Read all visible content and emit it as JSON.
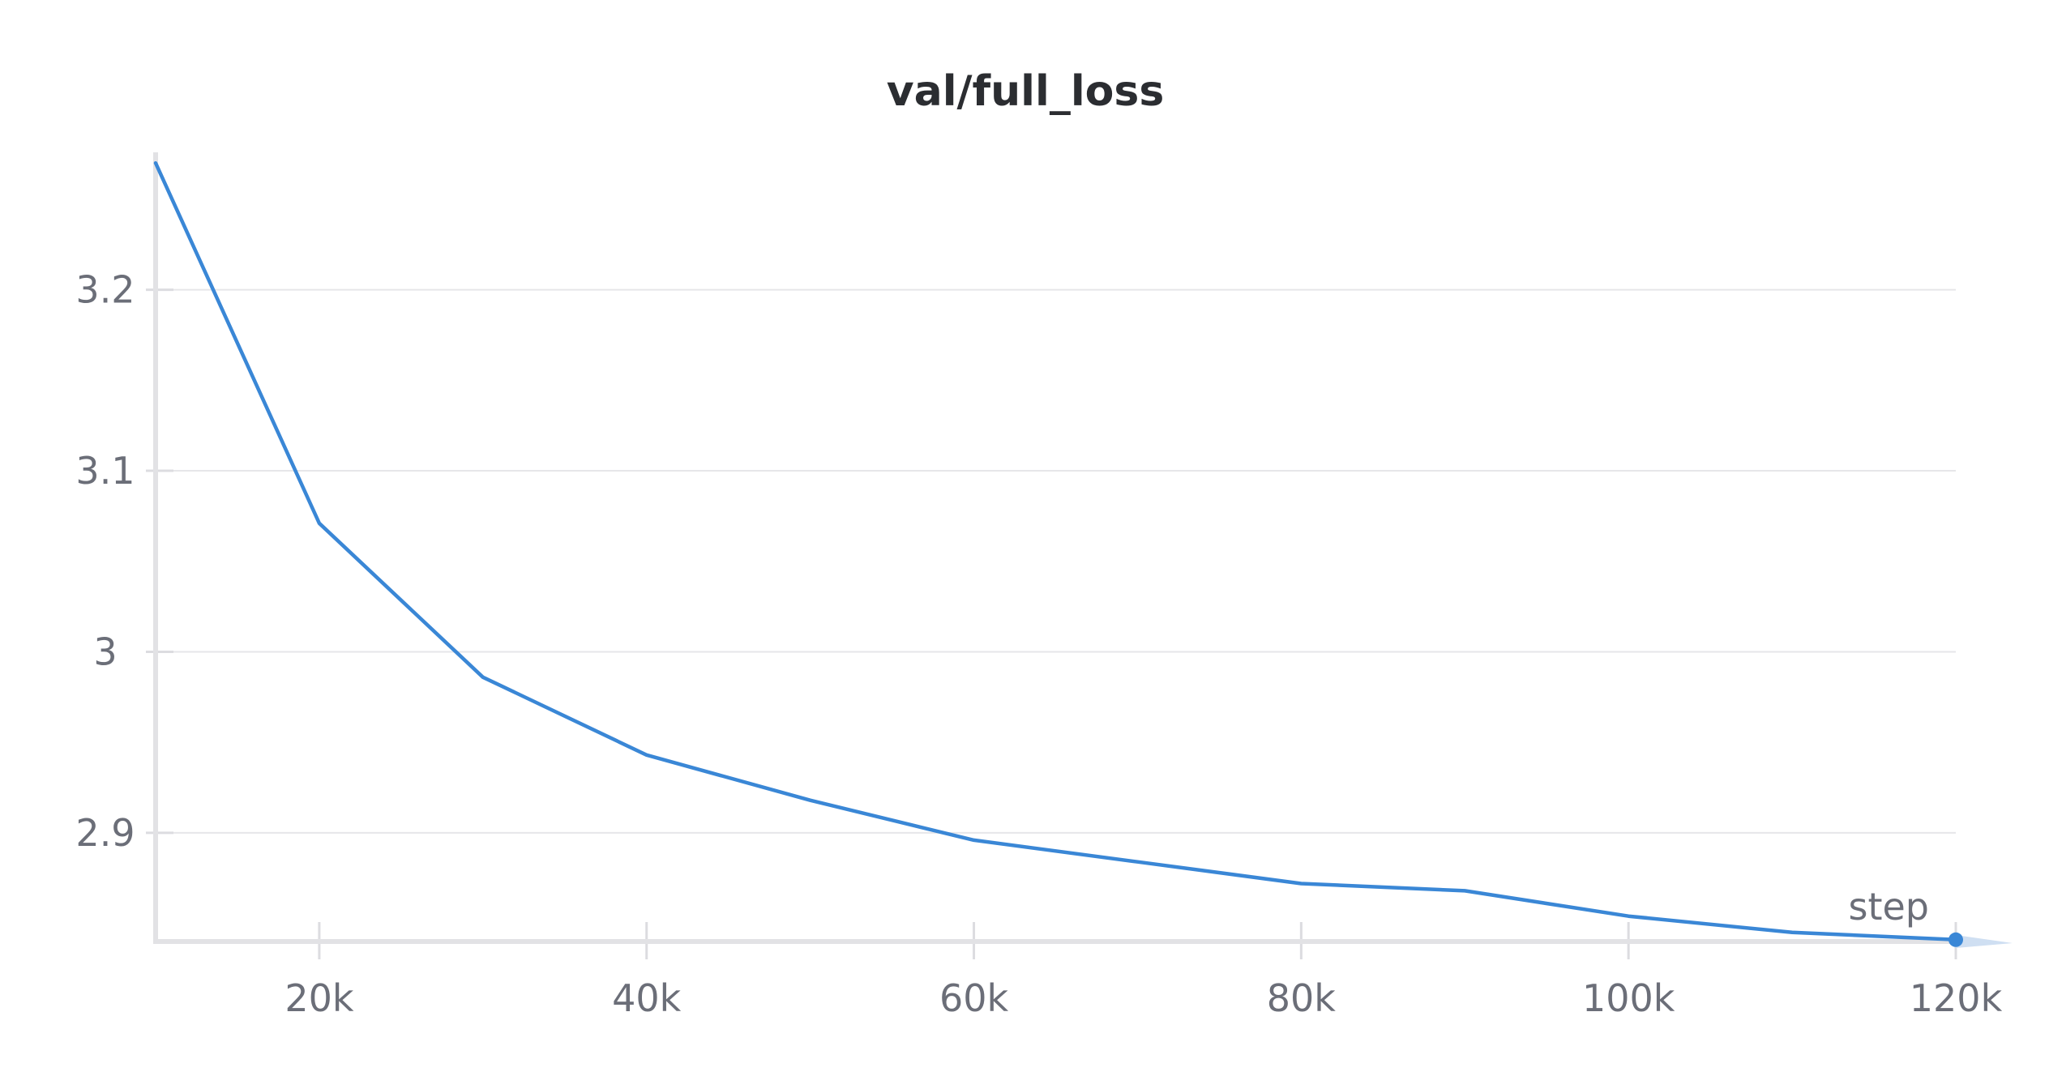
{
  "chart_data": {
    "type": "line",
    "title": "val/full_loss",
    "xlabel": "step",
    "ylabel": "",
    "xlim": [
      10000,
      120000
    ],
    "ylim": [
      2.84,
      3.275
    ],
    "x_ticks": [
      20000,
      40000,
      60000,
      80000,
      100000,
      120000
    ],
    "x_tick_labels": [
      "20k",
      "40k",
      "60k",
      "80k",
      "100k",
      "120k"
    ],
    "y_ticks": [
      2.9,
      3.0,
      3.1,
      3.2
    ],
    "y_tick_labels": [
      "2.9",
      "3",
      "3.1",
      "3.2"
    ],
    "grid": true,
    "legend": "none",
    "series": [
      {
        "color": "#3a87d6",
        "x": [
          10000,
          20000,
          30000,
          40000,
          50000,
          60000,
          70000,
          80000,
          90000,
          100000,
          110000,
          120000
        ],
        "y": [
          3.27,
          3.071,
          2.986,
          2.943,
          2.918,
          2.896,
          2.884,
          2.872,
          2.868,
          2.854,
          2.845,
          2.841
        ]
      }
    ]
  }
}
